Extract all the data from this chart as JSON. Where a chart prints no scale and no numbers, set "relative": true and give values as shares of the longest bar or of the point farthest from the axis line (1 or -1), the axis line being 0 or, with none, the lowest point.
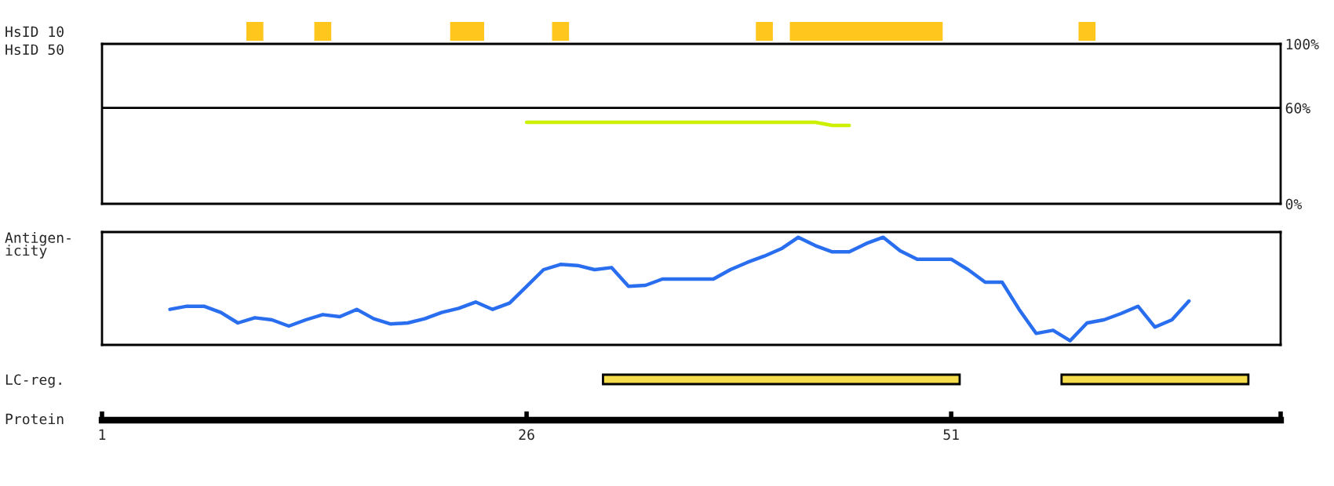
{
  "chart_data": [
    {
      "type": "bar",
      "orientation": "horizontal",
      "categories": [
        "HsID 10"
      ],
      "xlim": [
        1,
        70.4
      ],
      "tick_labels": "y",
      "series": [
        {
          "color": "#ffc61e",
          "values": [
            1
          ],
          "base": [
            9.5
          ]
        },
        {
          "color": "#ffc61e",
          "values": [
            1
          ],
          "base": [
            13.5
          ]
        },
        {
          "color": "#ffc61e",
          "values": [
            2
          ],
          "base": [
            21.5
          ]
        },
        {
          "color": "#ffc61e",
          "values": [
            1
          ],
          "base": [
            27.5
          ]
        },
        {
          "color": "#ffc61e",
          "values": [
            1
          ],
          "base": [
            39.5
          ]
        },
        {
          "color": "#ffc61e",
          "values": [
            9
          ],
          "base": [
            41.5
          ]
        },
        {
          "color": "#ffc61e",
          "values": [
            1
          ],
          "base": [
            58.5
          ]
        }
      ]
    },
    {
      "type": "line",
      "ylabel": "HsID 50",
      "xlim": [
        1,
        70.4
      ],
      "ylim": [
        0,
        100
      ],
      "tick_labels": "y",
      "yticks": [
        {
          "value": 0,
          "label": "0%"
        },
        {
          "value": 60,
          "label": "60%"
        },
        {
          "value": 100,
          "label": "100%"
        }
      ],
      "ref_lines": [
        {
          "axis": "y",
          "value": 60,
          "color": "#000000"
        }
      ],
      "series": [
        {
          "color": "#ccf000",
          "x": [
            26,
            30,
            35,
            40,
            43,
            43.5,
            44,
            45
          ],
          "values": [
            51,
            51,
            51,
            51,
            51,
            50,
            49,
            49
          ]
        }
      ]
    },
    {
      "type": "line",
      "ylabel": "Antigen-\nicity",
      "xlim": [
        1,
        70.4
      ],
      "relative": true,
      "tick_labels": false,
      "series": [
        {
          "color": "#2a6ef0",
          "x": [
            5,
            6,
            7,
            8,
            9,
            10,
            11,
            12,
            13,
            14,
            15,
            16,
            17,
            18,
            19,
            20,
            21,
            22,
            23,
            24,
            25,
            26,
            27,
            28,
            29,
            30,
            31,
            32,
            33,
            34,
            35,
            36,
            37,
            38,
            39,
            40,
            41,
            42,
            43,
            44,
            45,
            46,
            47,
            48,
            49,
            50,
            51,
            52,
            53,
            54,
            55,
            56,
            57,
            58,
            59,
            60,
            61,
            62,
            63,
            64,
            65
          ],
          "values": [
            0.31,
            0.34,
            0.34,
            0.28,
            0.18,
            0.23,
            0.21,
            0.15,
            0.21,
            0.26,
            0.24,
            0.31,
            0.22,
            0.17,
            0.18,
            0.22,
            0.28,
            0.32,
            0.38,
            0.31,
            0.37,
            0.53,
            0.69,
            0.74,
            0.73,
            0.69,
            0.71,
            0.53,
            0.54,
            0.6,
            0.6,
            0.6,
            0.6,
            0.69,
            0.76,
            0.82,
            0.89,
            1.0,
            0.92,
            0.86,
            0.86,
            0.94,
            1.0,
            0.87,
            0.79,
            0.79,
            0.79,
            0.69,
            0.57,
            0.57,
            0.31,
            0.08,
            0.11,
            0.01,
            0.18,
            0.21,
            0.27,
            0.34,
            0.14,
            0.21,
            0.39
          ]
        }
      ]
    },
    {
      "type": "bar",
      "orientation": "horizontal",
      "categories": [
        "LC-reg."
      ],
      "xlabel": "Protein",
      "xlim": [
        1,
        70.4
      ],
      "xticks": [
        1,
        26,
        51,
        {
          "value": 70.4,
          "label": null
        }
      ],
      "series": [
        {
          "color": "#f5dc4a",
          "values": [
            21
          ],
          "base": [
            30.5
          ]
        },
        {
          "color": "#f5dc4a",
          "values": [
            11
          ],
          "base": [
            57.5
          ]
        }
      ]
    }
  ]
}
